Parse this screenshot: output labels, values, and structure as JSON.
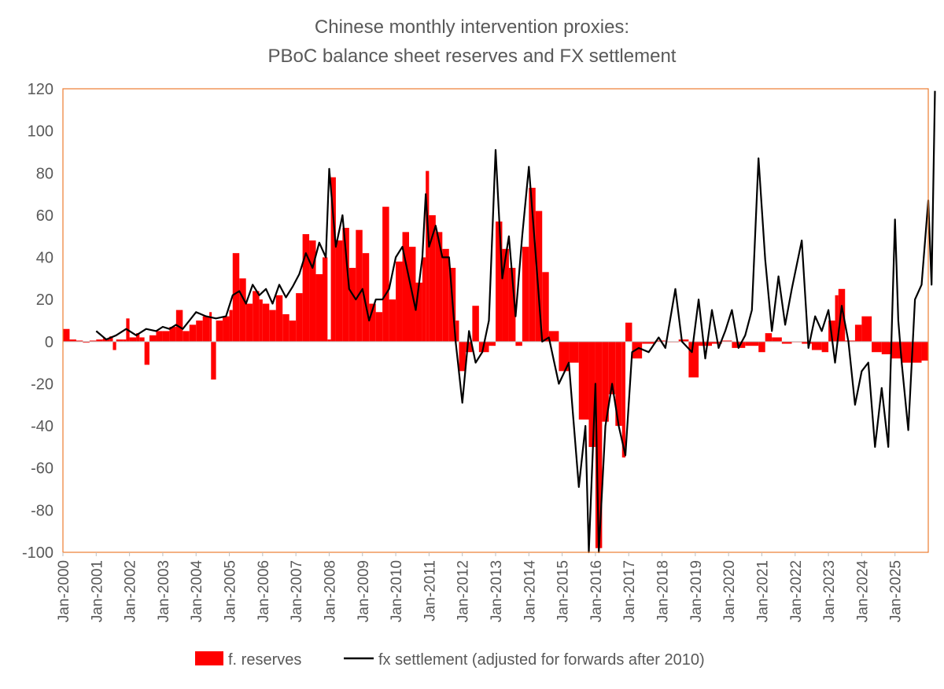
{
  "chart_data": {
    "type": "bar+line",
    "title_lines": [
      "Chinese monthly intervention proxies:",
      "PBoC balance sheet reserves and FX settlement"
    ],
    "ylim": [
      -100,
      120
    ],
    "yticks": [
      120,
      100,
      80,
      60,
      40,
      20,
      0,
      -20,
      -40,
      -60,
      -80,
      -100
    ],
    "xrange_years": [
      2000,
      2026
    ],
    "xticks": [
      "Jan-2000",
      "Jan-2001",
      "Jan-2002",
      "Jan-2003",
      "Jan-2004",
      "Jan-2005",
      "Jan-2006",
      "Jan-2007",
      "Jan-2008",
      "Jan-2009",
      "Jan-2010",
      "Jan-2011",
      "Jan-2012",
      "Jan-2013",
      "Jan-2014",
      "Jan-2015",
      "Jan-2016",
      "Jan-2017",
      "Jan-2018",
      "Jan-2019",
      "Jan-2020",
      "Jan-2021",
      "Jan-2022",
      "Jan-2023",
      "Jan-2024",
      "Jan-2025"
    ],
    "legend": [
      {
        "name": "f. reserves",
        "kind": "bar"
      },
      {
        "name": "fx settlement (adjusted for forwards after 2010)",
        "kind": "line"
      }
    ],
    "colors": {
      "bars": "#ff0000",
      "line": "#000000",
      "frame": "#ed7d31",
      "text": "#595959"
    },
    "series": [
      {
        "name": "f. reserves",
        "kind": "bar",
        "points": [
          [
            2000.0,
            6
          ],
          [
            2000.2,
            1
          ],
          [
            2000.4,
            0.5
          ],
          [
            2000.6,
            -0.5
          ],
          [
            2000.8,
            0.5
          ],
          [
            2001.0,
            1
          ],
          [
            2001.2,
            1.5
          ],
          [
            2001.4,
            2.5
          ],
          [
            2001.5,
            -4
          ],
          [
            2001.6,
            1
          ],
          [
            2001.8,
            1
          ],
          [
            2001.9,
            11
          ],
          [
            2002.0,
            2
          ],
          [
            2002.2,
            4
          ],
          [
            2002.3,
            2
          ],
          [
            2002.45,
            -11
          ],
          [
            2002.6,
            3
          ],
          [
            2002.8,
            5
          ],
          [
            2003.0,
            5
          ],
          [
            2003.2,
            7
          ],
          [
            2003.4,
            15
          ],
          [
            2003.6,
            5
          ],
          [
            2003.8,
            8
          ],
          [
            2004.0,
            10
          ],
          [
            2004.2,
            12
          ],
          [
            2004.4,
            14
          ],
          [
            2004.45,
            -18
          ],
          [
            2004.6,
            10
          ],
          [
            2004.8,
            12
          ],
          [
            2005.0,
            15
          ],
          [
            2005.1,
            42
          ],
          [
            2005.3,
            30
          ],
          [
            2005.5,
            18
          ],
          [
            2005.7,
            24
          ],
          [
            2005.9,
            20
          ],
          [
            2006.0,
            18
          ],
          [
            2006.2,
            15
          ],
          [
            2006.4,
            22
          ],
          [
            2006.6,
            13
          ],
          [
            2006.8,
            10
          ],
          [
            2007.0,
            23
          ],
          [
            2007.2,
            51
          ],
          [
            2007.4,
            48
          ],
          [
            2007.6,
            32
          ],
          [
            2007.8,
            40
          ],
          [
            2007.95,
            1
          ],
          [
            2008.05,
            78
          ],
          [
            2008.2,
            48
          ],
          [
            2008.4,
            54
          ],
          [
            2008.6,
            35
          ],
          [
            2008.8,
            53
          ],
          [
            2009.0,
            42
          ],
          [
            2009.2,
            18
          ],
          [
            2009.4,
            14
          ],
          [
            2009.6,
            64
          ],
          [
            2009.8,
            20
          ],
          [
            2010.0,
            38
          ],
          [
            2010.2,
            52
          ],
          [
            2010.4,
            45
          ],
          [
            2010.6,
            28
          ],
          [
            2010.8,
            40
          ],
          [
            2010.9,
            81
          ],
          [
            2011.0,
            60
          ],
          [
            2011.2,
            52
          ],
          [
            2011.4,
            44
          ],
          [
            2011.6,
            35
          ],
          [
            2011.8,
            10
          ],
          [
            2011.9,
            -14
          ],
          [
            2012.1,
            -5
          ],
          [
            2012.3,
            17
          ],
          [
            2012.5,
            -5
          ],
          [
            2012.8,
            -2
          ],
          [
            2013.0,
            57
          ],
          [
            2013.2,
            44
          ],
          [
            2013.4,
            35
          ],
          [
            2013.6,
            -2
          ],
          [
            2013.8,
            45
          ],
          [
            2014.0,
            73
          ],
          [
            2014.2,
            62
          ],
          [
            2014.4,
            33
          ],
          [
            2014.6,
            5
          ],
          [
            2014.9,
            -14
          ],
          [
            2015.2,
            -10
          ],
          [
            2015.5,
            -37
          ],
          [
            2015.8,
            -50
          ],
          [
            2016.0,
            -98
          ],
          [
            2016.2,
            -38
          ],
          [
            2016.4,
            -25
          ],
          [
            2016.6,
            -40
          ],
          [
            2016.8,
            -55
          ],
          [
            2016.9,
            9
          ],
          [
            2017.1,
            -8
          ],
          [
            2017.4,
            -1
          ],
          [
            2017.8,
            0.5
          ],
          [
            2018.1,
            0
          ],
          [
            2018.5,
            1
          ],
          [
            2018.8,
            -17
          ],
          [
            2019.1,
            -2
          ],
          [
            2019.5,
            -1
          ],
          [
            2019.8,
            0.5
          ],
          [
            2020.1,
            -3
          ],
          [
            2020.5,
            -2
          ],
          [
            2020.9,
            -5
          ],
          [
            2021.1,
            4
          ],
          [
            2021.3,
            2
          ],
          [
            2021.6,
            -1
          ],
          [
            2021.9,
            0
          ],
          [
            2022.2,
            -1
          ],
          [
            2022.5,
            -4
          ],
          [
            2022.8,
            -5
          ],
          [
            2023.0,
            10
          ],
          [
            2023.2,
            22
          ],
          [
            2023.3,
            25
          ],
          [
            2023.5,
            0.5
          ],
          [
            2023.8,
            8
          ],
          [
            2024.0,
            12
          ],
          [
            2024.3,
            -5
          ],
          [
            2024.6,
            -6
          ],
          [
            2024.9,
            -8
          ],
          [
            2025.2,
            -10
          ],
          [
            2025.5,
            -10
          ],
          [
            2025.8,
            -9
          ]
        ]
      },
      {
        "name": "fx settlement (adjusted for forwards after 2010)",
        "kind": "line",
        "points": [
          [
            2001.0,
            5
          ],
          [
            2001.3,
            1
          ],
          [
            2001.6,
            3
          ],
          [
            2001.9,
            6
          ],
          [
            2002.2,
            3
          ],
          [
            2002.5,
            6
          ],
          [
            2002.8,
            5
          ],
          [
            2003.0,
            7
          ],
          [
            2003.2,
            6
          ],
          [
            2003.4,
            8
          ],
          [
            2003.6,
            6
          ],
          [
            2003.8,
            10
          ],
          [
            2004.0,
            14
          ],
          [
            2004.3,
            12
          ],
          [
            2004.6,
            11
          ],
          [
            2004.9,
            12
          ],
          [
            2005.1,
            22
          ],
          [
            2005.3,
            24
          ],
          [
            2005.5,
            18
          ],
          [
            2005.7,
            27
          ],
          [
            2005.9,
            22
          ],
          [
            2006.1,
            25
          ],
          [
            2006.3,
            18
          ],
          [
            2006.5,
            27
          ],
          [
            2006.7,
            21
          ],
          [
            2006.9,
            26
          ],
          [
            2007.1,
            32
          ],
          [
            2007.3,
            42
          ],
          [
            2007.5,
            35
          ],
          [
            2007.7,
            47
          ],
          [
            2007.9,
            40
          ],
          [
            2008.0,
            82
          ],
          [
            2008.2,
            45
          ],
          [
            2008.4,
            60
          ],
          [
            2008.6,
            25
          ],
          [
            2008.8,
            20
          ],
          [
            2009.0,
            25
          ],
          [
            2009.2,
            10
          ],
          [
            2009.4,
            20
          ],
          [
            2009.6,
            20
          ],
          [
            2009.8,
            25
          ],
          [
            2010.0,
            40
          ],
          [
            2010.2,
            45
          ],
          [
            2010.4,
            30
          ],
          [
            2010.6,
            15
          ],
          [
            2010.8,
            40
          ],
          [
            2010.9,
            70
          ],
          [
            2011.0,
            45
          ],
          [
            2011.2,
            55
          ],
          [
            2011.4,
            40
          ],
          [
            2011.6,
            40
          ],
          [
            2011.8,
            0
          ],
          [
            2012.0,
            -29
          ],
          [
            2012.2,
            5
          ],
          [
            2012.4,
            -10
          ],
          [
            2012.6,
            -5
          ],
          [
            2012.8,
            10
          ],
          [
            2013.0,
            91
          ],
          [
            2013.2,
            30
          ],
          [
            2013.4,
            50
          ],
          [
            2013.6,
            12
          ],
          [
            2013.8,
            50
          ],
          [
            2014.0,
            83
          ],
          [
            2014.2,
            42
          ],
          [
            2014.4,
            0
          ],
          [
            2014.6,
            2
          ],
          [
            2014.9,
            -20
          ],
          [
            2015.2,
            -10
          ],
          [
            2015.5,
            -69
          ],
          [
            2015.7,
            -40
          ],
          [
            2015.8,
            -100
          ],
          [
            2016.0,
            -20
          ],
          [
            2016.1,
            -100
          ],
          [
            2016.3,
            -40
          ],
          [
            2016.5,
            -20
          ],
          [
            2016.7,
            -40
          ],
          [
            2016.9,
            -54
          ],
          [
            2017.1,
            -5
          ],
          [
            2017.3,
            -3
          ],
          [
            2017.6,
            -5
          ],
          [
            2017.9,
            2
          ],
          [
            2018.1,
            -3
          ],
          [
            2018.4,
            25
          ],
          [
            2018.6,
            0
          ],
          [
            2018.9,
            -5
          ],
          [
            2019.1,
            20
          ],
          [
            2019.3,
            -8
          ],
          [
            2019.5,
            15
          ],
          [
            2019.7,
            -3
          ],
          [
            2019.9,
            5
          ],
          [
            2020.1,
            15
          ],
          [
            2020.3,
            -3
          ],
          [
            2020.5,
            3
          ],
          [
            2020.7,
            15
          ],
          [
            2020.9,
            87
          ],
          [
            2021.1,
            39
          ],
          [
            2021.3,
            5
          ],
          [
            2021.5,
            31
          ],
          [
            2021.7,
            8
          ],
          [
            2021.9,
            25
          ],
          [
            2022.2,
            48
          ],
          [
            2022.4,
            -3
          ],
          [
            2022.6,
            12
          ],
          [
            2022.8,
            5
          ],
          [
            2023.0,
            15
          ],
          [
            2023.2,
            -10
          ],
          [
            2023.4,
            17
          ],
          [
            2023.6,
            0
          ],
          [
            2023.8,
            -30
          ],
          [
            2024.0,
            -14
          ],
          [
            2024.2,
            -10
          ],
          [
            2024.4,
            -50
          ],
          [
            2024.6,
            -22
          ],
          [
            2024.8,
            -50
          ],
          [
            2025.0,
            58
          ],
          [
            2025.1,
            10
          ],
          [
            2025.2,
            -10
          ],
          [
            2025.4,
            -42
          ],
          [
            2025.6,
            20
          ],
          [
            2025.8,
            27
          ],
          [
            2026.0,
            67
          ],
          [
            2026.1,
            27
          ],
          [
            2026.2,
            119
          ]
        ]
      }
    ]
  }
}
